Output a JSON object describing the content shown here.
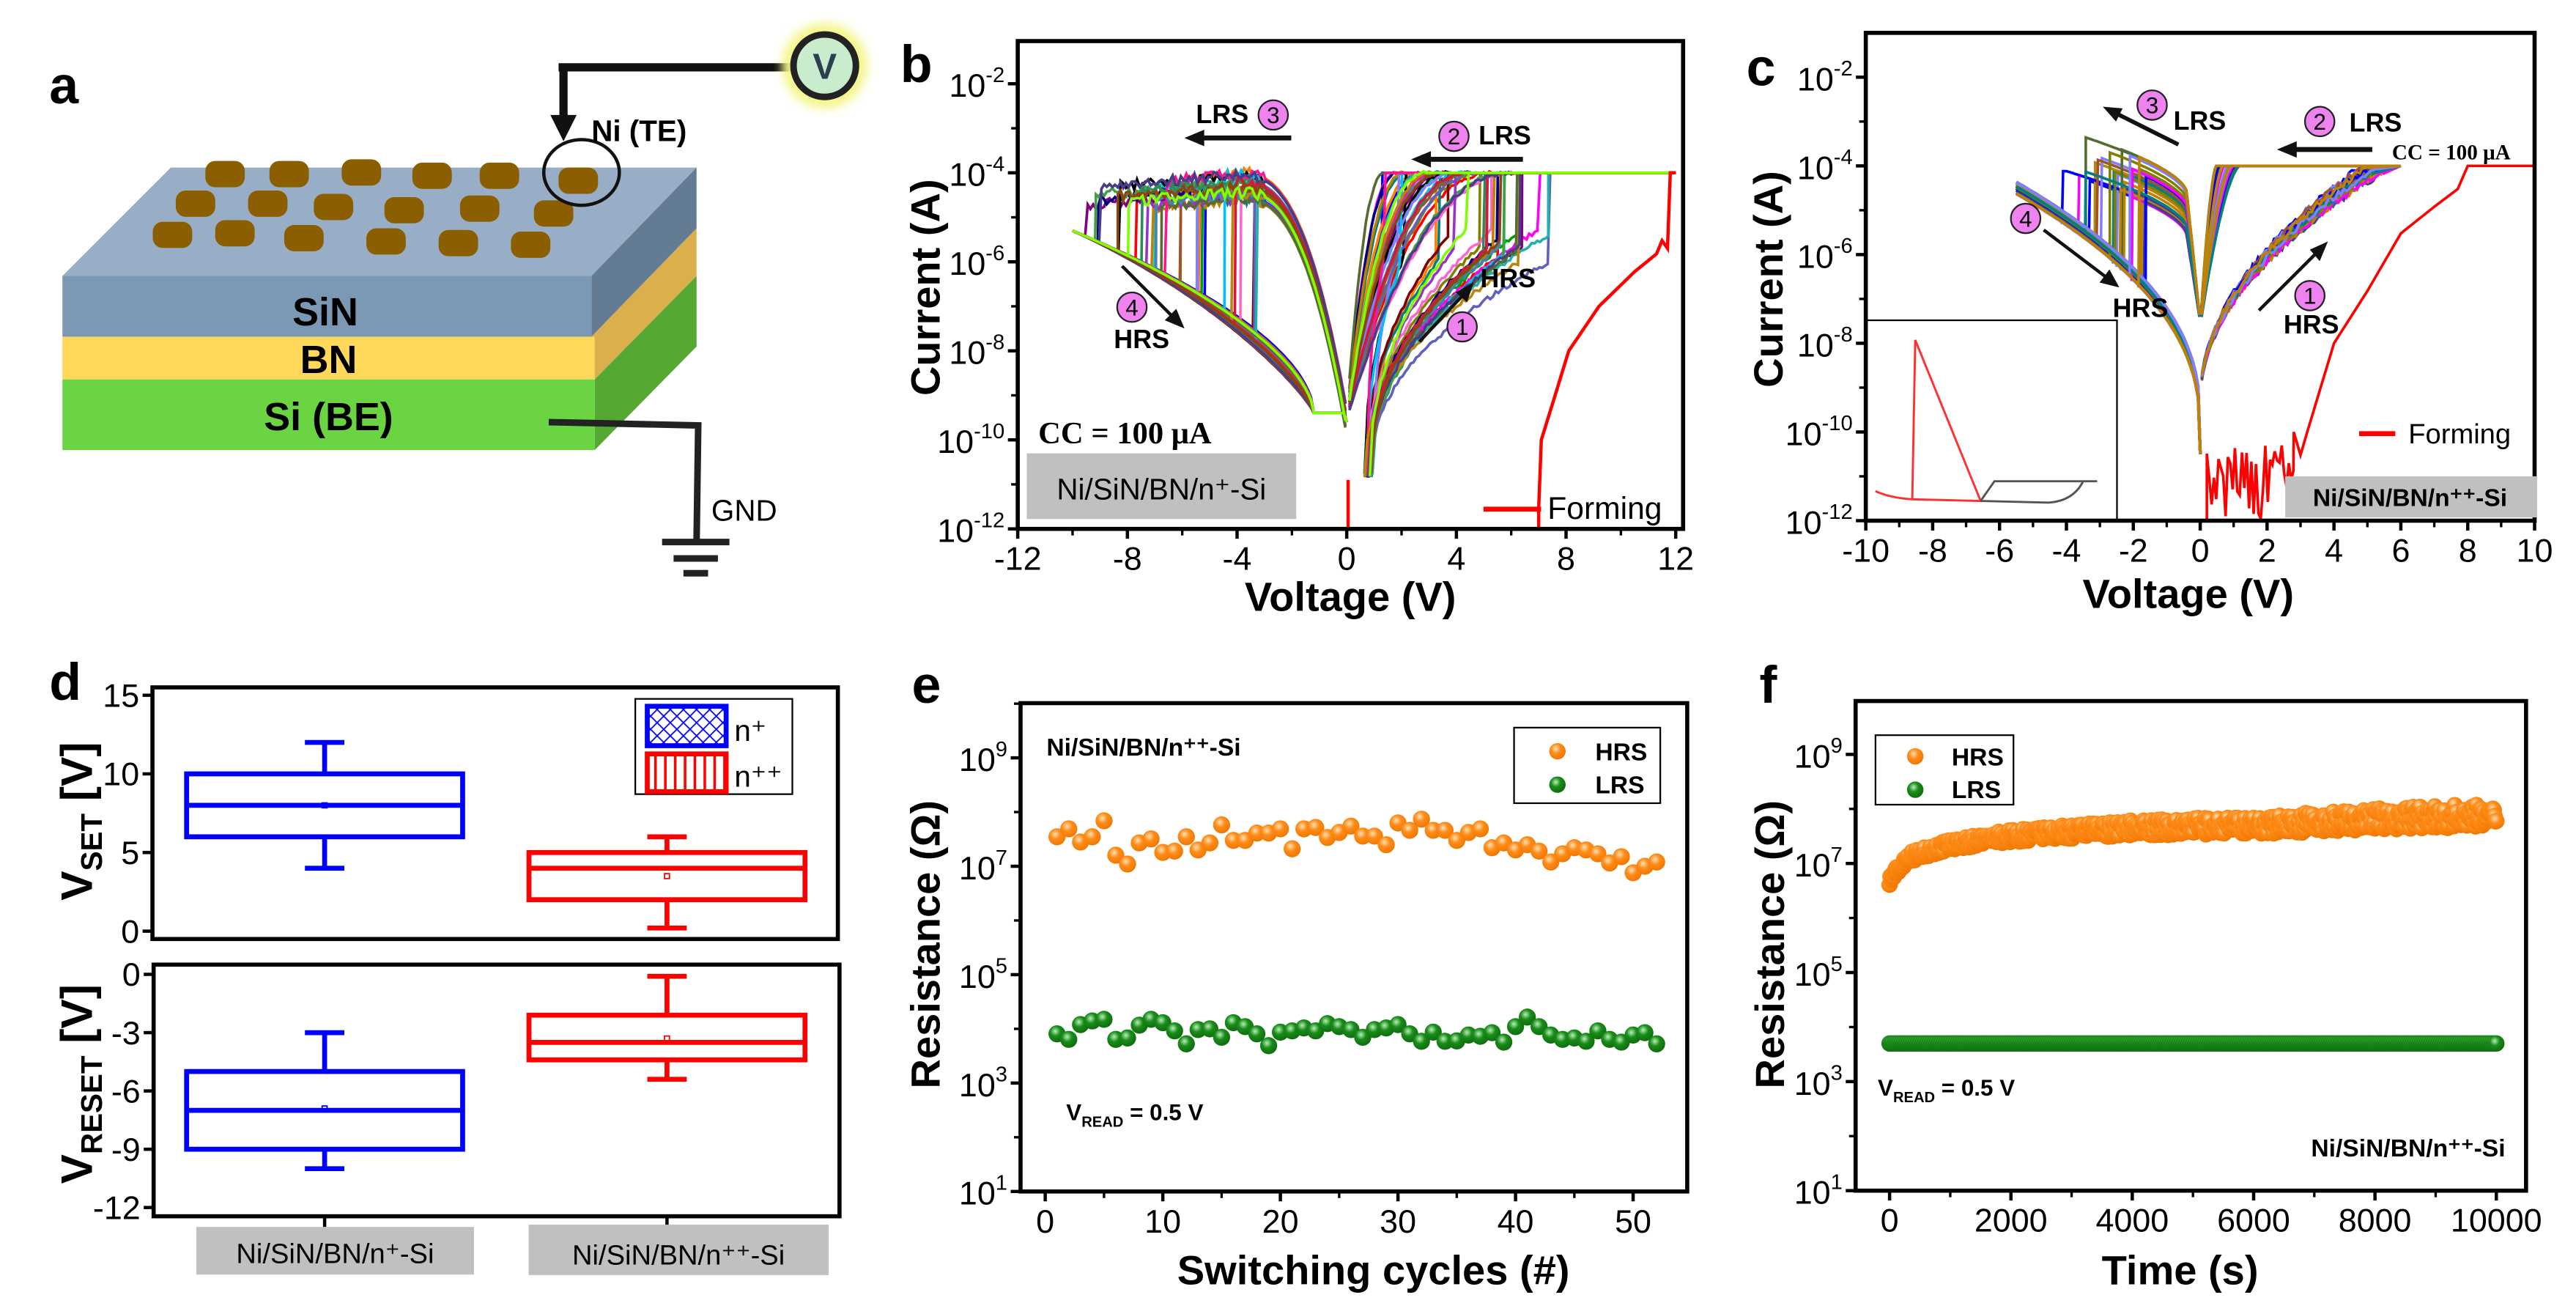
{
  "panel_a": {
    "label": "a",
    "layers": [
      "SiN",
      "BN",
      "Si (BE)"
    ],
    "top_electrode": "Ni (TE)",
    "ground": "GND",
    "voltmeter": "V",
    "colors": {
      "sin": "#7b98b4",
      "bn": "#ffd85a",
      "si": "#6ad443",
      "electrode": "#8b5e00"
    }
  },
  "chart_data": [
    {
      "panel": "b",
      "type": "line",
      "xlabel": "Voltage (V)",
      "ylabel": "Current (A)",
      "xlim": [
        -12,
        12
      ],
      "ylim": [
        1e-12,
        0.1
      ],
      "yscale": "log",
      "xticks": [
        "-12",
        "-8",
        "-4",
        "0",
        "4",
        "8",
        "12"
      ],
      "xtick_values": [
        -12,
        -8,
        -4,
        0,
        4,
        8,
        12
      ],
      "ytick_exponents": [
        "-12",
        "-10",
        "-8",
        "-6",
        "-4",
        "-2"
      ],
      "compliance_label": "CC = 100 μA",
      "compliance_A": 0.0001,
      "device_label": "Ni/SiN/BN/n⁺-Si",
      "annotations": {
        "lrs": "LRS",
        "hrs": "HRS",
        "steps": [
          "1",
          "2",
          "3",
          "4"
        ]
      },
      "legend": [
        "Forming"
      ],
      "forming": {
        "color": "#ff0000",
        "points": [
          [
            7.0,
            1e-12
          ],
          [
            7.0,
            3e-12
          ],
          [
            7.1,
            1e-10
          ],
          [
            7.6,
            1e-09
          ],
          [
            8.1,
            1e-08
          ],
          [
            9.2,
            1e-07
          ],
          [
            10.5,
            6e-07
          ],
          [
            11.3,
            1.5e-06
          ],
          [
            11.5,
            3e-06
          ],
          [
            11.7,
            2e-06
          ],
          [
            11.8,
            0.0001
          ],
          [
            12,
            0.0001
          ]
        ]
      },
      "switching": {
        "cycles_drawn": 30,
        "set_voltage_range_V": [
          1.3,
          7.5
        ],
        "reset_voltage_range_V": [
          -3,
          -9.8
        ],
        "sweep_range_V": [
          -10,
          12
        ],
        "lrs_current_at_minus10V_A": [
          5e-05,
          0.0001
        ],
        "hrs_current_at_minus10V_A": [
          5e-06,
          1e-05
        ],
        "min_current_near_0V_A": 4e-10
      }
    },
    {
      "panel": "c",
      "type": "line",
      "xlabel": "Voltage (V)",
      "ylabel": "Current (A)",
      "xlim": [
        -10,
        10
      ],
      "ylim": [
        1e-12,
        0.1
      ],
      "yscale": "log",
      "xticks": [
        "-10",
        "-8",
        "-6",
        "-4",
        "-2",
        "0",
        "2",
        "4",
        "6",
        "8",
        "10"
      ],
      "xtick_values": [
        -10,
        -8,
        -6,
        -4,
        -2,
        0,
        2,
        4,
        6,
        8,
        10
      ],
      "ytick_exponents": [
        "-12",
        "-10",
        "-8",
        "-6",
        "-4",
        "-2"
      ],
      "compliance_label": "CC = 100 μA",
      "compliance_A": 0.0001,
      "device_label": "Ni/SiN/BN/n⁺⁺-Si",
      "annotations": {
        "lrs": "LRS",
        "hrs": "HRS",
        "steps": [
          "1",
          "2",
          "3",
          "4"
        ]
      },
      "legend": [
        "Forming"
      ],
      "forming": {
        "color": "#ff0000",
        "points": [
          [
            2.8,
            1e-10
          ],
          [
            3.0,
            3e-11
          ],
          [
            3.2,
            1e-10
          ],
          [
            4.0,
            1e-08
          ],
          [
            5.0,
            1.5e-07
          ],
          [
            6.0,
            3e-06
          ],
          [
            7.0,
            1.2e-05
          ],
          [
            7.7,
            3e-05
          ],
          [
            8.0,
            0.0001
          ],
          [
            10,
            0.0001
          ]
        ]
      },
      "switching": {
        "cycles_drawn": 26,
        "set_voltage_range_V": [
          4.7,
          5.6
        ],
        "reset_voltage_range_V": [
          -1.5,
          -4.4
        ],
        "sweep_range_V": [
          -5.5,
          6
        ],
        "lrs_peak_current_A": 0.001
      }
    },
    {
      "panel": "d",
      "type": "box",
      "categories": [
        "Ni/SiN/BN/n⁺-Si",
        "Ni/SiN/BN/n⁺⁺-Si"
      ],
      "legend": [
        "n⁺",
        "n⁺⁺"
      ],
      "colors": [
        "#0000ff",
        "#ff0000"
      ],
      "set": {
        "ylabel": {
          "main": "V",
          "sub": "SET",
          "unit": " [V]"
        },
        "ylim": [
          -0.5,
          15.5
        ],
        "yticks": [
          0,
          5,
          10,
          15
        ],
        "boxes": [
          {
            "min": 4,
            "q1": 6,
            "median": 8,
            "q3": 10,
            "max": 12,
            "mean": 8
          },
          {
            "min": 0.2,
            "q1": 2,
            "median": 4,
            "q3": 5,
            "max": 6,
            "mean": 3.5
          }
        ]
      },
      "reset": {
        "ylabel": {
          "main": "V",
          "sub": "RESET",
          "unit": " [V]"
        },
        "ylim": [
          -12.45,
          0.5
        ],
        "yticks": [
          0,
          -3,
          -6,
          -9,
          -12
        ],
        "boxes": [
          {
            "min": -10,
            "q1": -9,
            "median": -7,
            "q3": -5,
            "max": -3,
            "mean": -6.9
          },
          {
            "min": -5.4,
            "q1": -4.4,
            "median": -3.5,
            "q3": -2.1,
            "max": -0.1,
            "mean": -3.3
          }
        ]
      }
    },
    {
      "panel": "e",
      "type": "scatter",
      "xlabel": "Switching cycles (#)",
      "ylabel": "Resistance (Ω)",
      "xlim": [
        -2.1,
        54.6
      ],
      "ylim": [
        10.0,
        10000000000.0
      ],
      "yscale": "log",
      "xticks": [
        "0",
        "10",
        "20",
        "30",
        "40",
        "50"
      ],
      "xtick_values": [
        0,
        10,
        20,
        30,
        40,
        50
      ],
      "ytick_exponents": [
        "1",
        "3",
        "5",
        "7",
        "9"
      ],
      "title": "Ni/SiN/BN/n⁺⁺-Si",
      "read_label": {
        "main": "V",
        "sub": "READ",
        "rest": " = 0.5 V"
      },
      "legend": [
        "HRS",
        "LRS"
      ],
      "colors": [
        "#ff8c1a",
        "#1a8c1a"
      ],
      "x": [
        1,
        2,
        3,
        4,
        5,
        6,
        7,
        8,
        9,
        10,
        11,
        12,
        13,
        14,
        15,
        16,
        17,
        18,
        19,
        20,
        21,
        22,
        23,
        24,
        25,
        26,
        27,
        28,
        29,
        30,
        31,
        32,
        33,
        34,
        35,
        36,
        37,
        38,
        39,
        40,
        41,
        42,
        43,
        44,
        45,
        46,
        47,
        48,
        49,
        50,
        51,
        52
      ],
      "series": [
        {
          "name": "HRS",
          "values": [
            35000000.0,
            49000000.0,
            28000000.0,
            35000000.0,
            69000000.0,
            16000000.0,
            11000000.0,
            27000000.0,
            32000000.0,
            18000000.0,
            19000000.0,
            35000000.0,
            20000000.0,
            27000000.0,
            58000000.0,
            30000000.0,
            30000000.0,
            41000000.0,
            41000000.0,
            49000000.0,
            21000000.0,
            49000000.0,
            52000000.0,
            34000000.0,
            42000000.0,
            55000000.0,
            36000000.0,
            36000000.0,
            25000000.0,
            63000000.0,
            46000000.0,
            74000000.0,
            46000000.0,
            46000000.0,
            30000000.0,
            42000000.0,
            49000000.0,
            22000000.0,
            27000000.0,
            20000000.0,
            25000000.0,
            19000000.0,
            12000000.0,
            17000000.0,
            22000000.0,
            20000000.0,
            17000000.0,
            11500000.0,
            15000000.0,
            7600000.0,
            10000000.0,
            12000000.0
          ]
        },
        {
          "name": "LRS",
          "values": [
            8100.0,
            6400.0,
            12000.0,
            14000.0,
            15000.0,
            6400.0,
            6800.0,
            11700.0,
            15000.0,
            13000.0,
            9200.0,
            5300.0,
            9700.0,
            10000.0,
            7000.0,
            13000.0,
            11000.0,
            8100.0,
            4900.0,
            8700.0,
            9200.0,
            10400.0,
            9200.0,
            12500.0,
            11000.0,
            9700.0,
            7000.0,
            9700.0,
            10400.0,
            12000.0,
            8100.0,
            5900.0,
            8700.0,
            5900.0,
            6000.0,
            7700.0,
            7300.0,
            8500.0,
            5700.0,
            11000.0,
            16500.0,
            11000.0,
            7700.0,
            6400.0,
            6800.0,
            5900.0,
            9200.0,
            6400.0,
            5700.0,
            7700.0,
            8500.0,
            5300.0
          ]
        }
      ]
    },
    {
      "panel": "f",
      "type": "scatter",
      "xlabel": "Time (s)",
      "ylabel": "Resistance (Ω)",
      "xlim": [
        -560,
        10490
      ],
      "ylim": [
        10.0,
        10000000000.0
      ],
      "yscale": "log",
      "xticks": [
        "0",
        "2000",
        "4000",
        "6000",
        "8000",
        "10000"
      ],
      "xtick_values": [
        0,
        2000,
        4000,
        6000,
        8000,
        10000
      ],
      "ytick_exponents": [
        "1",
        "3",
        "5",
        "7",
        "9"
      ],
      "device_label": "Ni/SiN/BN/n⁺⁺-Si",
      "read_label": {
        "main": "V",
        "sub": "READ",
        "rest": " = 0.5 V"
      },
      "legend": [
        "HRS",
        "LRS"
      ],
      "colors": [
        "#ff8c1a",
        "#1a8c1a"
      ],
      "series": [
        {
          "name": "HRS",
          "trend": [
            [
              0,
              5000000.0
            ],
            [
              300,
              13000000.0
            ],
            [
              1000,
              22000000.0
            ],
            [
              2000,
              32000000.0
            ],
            [
              4000,
              45000000.0
            ],
            [
              6000,
              50000000.0
            ],
            [
              8000,
              65000000.0
            ],
            [
              10000,
              78000000.0
            ]
          ],
          "spread_decades": 0.22
        },
        {
          "name": "LRS",
          "trend": [
            [
              0,
              5000.0
            ],
            [
              10000,
              5000.0
            ]
          ],
          "spread_decades": 0.0
        }
      ]
    }
  ]
}
